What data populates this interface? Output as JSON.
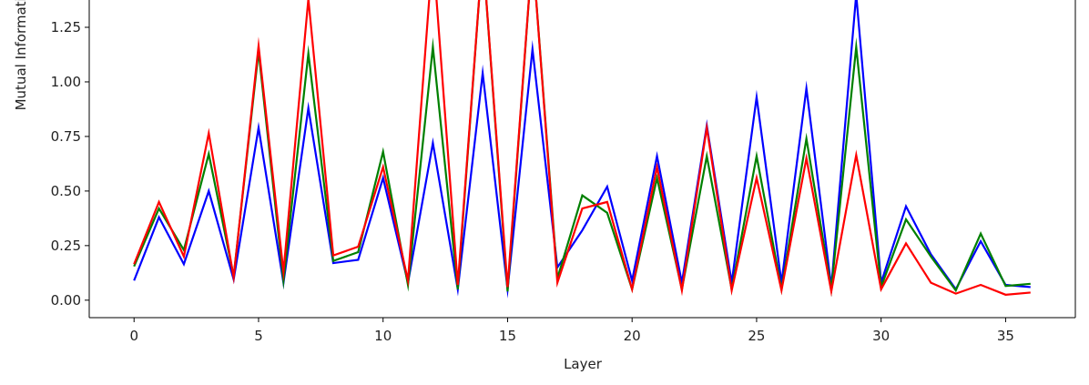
{
  "chart_data": {
    "type": "line",
    "title": "",
    "xlabel": "Layer",
    "ylabel": "Mutual Information",
    "xlim": [
      -1.8,
      37.8
    ],
    "ylim": [
      -0.08,
      1.45
    ],
    "xticks": [
      0,
      5,
      10,
      15,
      20,
      25,
      30,
      35
    ],
    "xtick_labels": [
      "0",
      "5",
      "10",
      "15",
      "20",
      "25",
      "30",
      "35"
    ],
    "yticks": [
      0.0,
      0.25,
      0.5,
      0.75,
      1.0,
      1.25
    ],
    "ytick_labels": [
      "0.00",
      "0.25",
      "0.50",
      "0.75",
      "1.00",
      "1.25"
    ],
    "grid": false,
    "x": [
      0,
      1,
      2,
      3,
      4,
      5,
      6,
      7,
      8,
      9,
      10,
      11,
      12,
      13,
      14,
      15,
      16,
      17,
      18,
      19,
      20,
      21,
      22,
      23,
      24,
      25,
      26,
      27,
      28,
      29,
      30,
      31,
      32,
      33,
      34,
      35,
      36
    ],
    "series": [
      {
        "color": "#0000ff",
        "values": [
          0.09,
          0.38,
          0.165,
          0.5,
          0.095,
          0.79,
          0.08,
          0.88,
          0.17,
          0.185,
          0.56,
          0.08,
          0.72,
          0.05,
          1.04,
          0.05,
          1.15,
          0.15,
          0.32,
          0.52,
          0.09,
          0.66,
          0.08,
          0.8,
          0.08,
          0.93,
          0.08,
          0.97,
          0.06,
          1.4,
          0.08,
          0.43,
          0.21,
          0.05,
          0.27,
          0.07,
          0.06
        ]
      },
      {
        "color": "#008000",
        "values": [
          0.155,
          0.42,
          0.23,
          0.67,
          0.11,
          1.14,
          0.09,
          1.13,
          0.18,
          0.22,
          0.68,
          0.07,
          1.16,
          0.05,
          1.6,
          0.04,
          1.6,
          0.1,
          0.48,
          0.4,
          0.05,
          0.56,
          0.05,
          0.66,
          0.05,
          0.66,
          0.05,
          0.74,
          0.05,
          1.16,
          0.06,
          0.37,
          0.2,
          0.045,
          0.305,
          0.065,
          0.075
        ]
      },
      {
        "color": "#ff0000",
        "values": [
          0.165,
          0.45,
          0.2,
          0.765,
          0.105,
          1.165,
          0.13,
          1.38,
          0.205,
          0.245,
          0.61,
          0.09,
          1.6,
          0.07,
          1.6,
          0.06,
          1.6,
          0.08,
          0.42,
          0.45,
          0.05,
          0.61,
          0.045,
          0.79,
          0.045,
          0.56,
          0.045,
          0.65,
          0.04,
          0.665,
          0.05,
          0.26,
          0.08,
          0.03,
          0.07,
          0.025,
          0.035
        ]
      }
    ]
  }
}
